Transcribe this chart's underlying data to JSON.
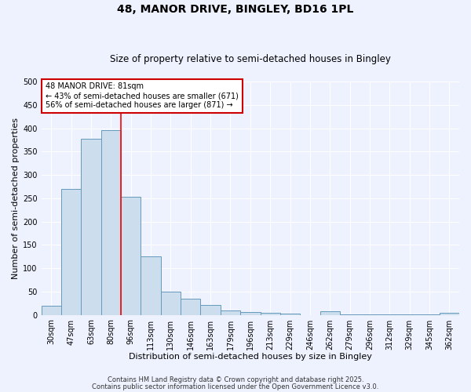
{
  "title_line1": "48, MANOR DRIVE, BINGLEY, BD16 1PL",
  "title_line2": "Size of property relative to semi-detached houses in Bingley",
  "xlabel": "Distribution of semi-detached houses by size in Bingley",
  "ylabel": "Number of semi-detached properties",
  "categories": [
    "30sqm",
    "47sqm",
    "63sqm",
    "80sqm",
    "96sqm",
    "113sqm",
    "130sqm",
    "146sqm",
    "163sqm",
    "179sqm",
    "196sqm",
    "213sqm",
    "229sqm",
    "246sqm",
    "262sqm",
    "279sqm",
    "296sqm",
    "312sqm",
    "329sqm",
    "345sqm",
    "362sqm"
  ],
  "values": [
    20,
    270,
    378,
    395,
    253,
    125,
    50,
    35,
    22,
    10,
    6,
    5,
    2,
    0,
    8,
    1,
    1,
    1,
    1,
    1,
    5
  ],
  "bar_color": "#ccdded",
  "bar_edge_color": "#6699bb",
  "red_line_x": 3.5,
  "annotation_text": "48 MANOR DRIVE: 81sqm\n← 43% of semi-detached houses are smaller (671)\n56% of semi-detached houses are larger (871) →",
  "annotation_box_color": "#ffffff",
  "annotation_box_edge_color": "#cc0000",
  "ylim": [
    0,
    500
  ],
  "yticks": [
    0,
    50,
    100,
    150,
    200,
    250,
    300,
    350,
    400,
    450,
    500
  ],
  "background_color": "#eef2ff",
  "grid_color": "#ffffff",
  "footer_line1": "Contains HM Land Registry data © Crown copyright and database right 2025.",
  "footer_line2": "Contains public sector information licensed under the Open Government Licence v3.0.",
  "title_fontsize": 10,
  "subtitle_fontsize": 8.5,
  "axis_label_fontsize": 8,
  "tick_fontsize": 7,
  "annotation_fontsize": 7,
  "footer_fontsize": 6
}
